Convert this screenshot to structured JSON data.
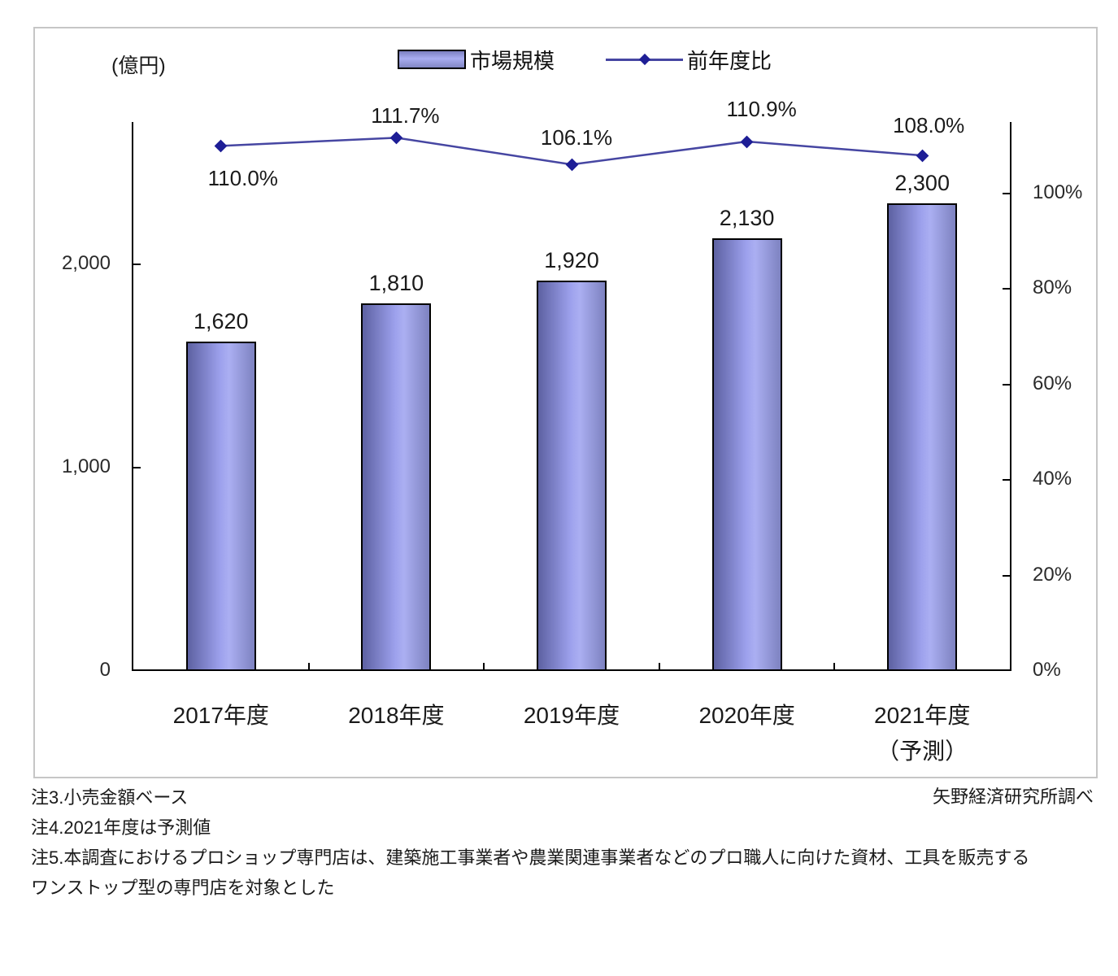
{
  "chart": {
    "unit_label": "(億円)",
    "source_note": "矢野経済研究所調べ",
    "notes": [
      "注3.小売金額ベース",
      "注4.2021年度は予測値",
      "注5.本調査におけるプロショップ専門店は、建築施工事業者や農業関連事業者などのプロ職人に向けた資材、工具を販売する",
      "ワンストップ型の専門店を対象とした"
    ]
  },
  "chart_data": {
    "type": "bar",
    "categories": [
      "2017年度",
      "2018年度",
      "2019年度",
      "2020年度",
      "2021年度"
    ],
    "category_sublabels": [
      "",
      "",
      "",
      "",
      "（予測）"
    ],
    "series": [
      {
        "name": "市場規模",
        "type": "bar",
        "axis": "left",
        "values": [
          1620,
          1810,
          1920,
          2130,
          2300
        ],
        "labels": [
          "1,620",
          "1,810",
          "1,920",
          "2,130",
          "2,300"
        ]
      },
      {
        "name": "前年度比",
        "type": "line",
        "axis": "right",
        "values": [
          110.0,
          111.7,
          106.1,
          110.9,
          108.0
        ],
        "labels": [
          "110.0%",
          "111.7%",
          "106.1%",
          "110.9%",
          "108.0%"
        ],
        "label_offsets": [
          [
            27,
            41
          ],
          [
            11,
            -26
          ],
          [
            6,
            -32
          ],
          [
            18,
            -39
          ],
          [
            8,
            -36
          ]
        ]
      }
    ],
    "left_axis": {
      "unit": "億円",
      "ticks": [
        0,
        1000,
        2000
      ],
      "tick_labels": [
        "0",
        "1,000",
        "2,000"
      ],
      "range": [
        0,
        2700
      ]
    },
    "right_axis": {
      "ticks": [
        0,
        20,
        40,
        60,
        80,
        100
      ],
      "tick_labels": [
        "0%",
        "20%",
        "40%",
        "60%",
        "80%",
        "100%"
      ],
      "range": [
        0,
        115
      ]
    },
    "grid": false,
    "legend_position": "top",
    "colors": {
      "bar_light": "#abaff2",
      "bar_dark": "#5d61a2",
      "bar_border": "#000000",
      "line": "#4646a2",
      "marker": "#1e1e96",
      "frame_border": "#c6c6c6"
    }
  }
}
